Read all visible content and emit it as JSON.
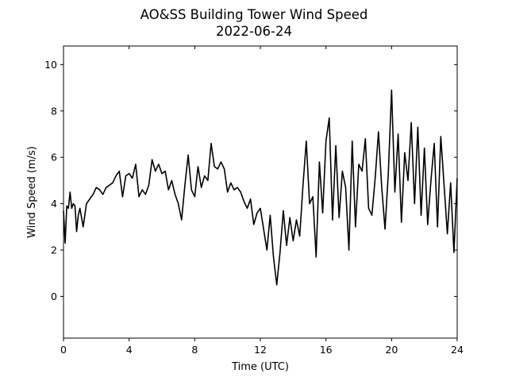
{
  "chart_data": {
    "type": "line",
    "title": "AO&SS Building Tower Wind Speed",
    "subtitle": "2022-06-24",
    "xlabel": "Time (UTC)",
    "ylabel": "Wind Speed (m/s)",
    "xlim": [
      0,
      24
    ],
    "ylim": [
      -1.8,
      10.8
    ],
    "xticks": [
      0,
      4,
      8,
      12,
      16,
      20,
      24
    ],
    "xtick_labels": [
      "0",
      "4",
      "8",
      "12",
      "16",
      "20",
      "24"
    ],
    "yticks": [
      0,
      2,
      4,
      6,
      8,
      10
    ],
    "ytick_labels": [
      "0",
      "2",
      "4",
      "6",
      "8",
      "10"
    ],
    "grid": false,
    "legend": "none",
    "series_color": "#000000",
    "series": [
      {
        "name": "",
        "x": [
          0.0,
          0.1,
          0.2,
          0.3,
          0.4,
          0.5,
          0.6,
          0.7,
          0.8,
          0.9,
          1.0,
          1.2,
          1.4,
          1.6,
          1.8,
          2.0,
          2.2,
          2.4,
          2.6,
          2.8,
          3.0,
          3.2,
          3.4,
          3.6,
          3.8,
          4.0,
          4.2,
          4.4,
          4.6,
          4.8,
          5.0,
          5.2,
          5.4,
          5.6,
          5.8,
          6.0,
          6.2,
          6.4,
          6.6,
          6.8,
          7.0,
          7.2,
          7.4,
          7.6,
          7.8,
          8.0,
          8.2,
          8.4,
          8.6,
          8.8,
          9.0,
          9.2,
          9.4,
          9.6,
          9.8,
          10.0,
          10.2,
          10.4,
          10.6,
          10.8,
          11.0,
          11.2,
          11.4,
          11.6,
          11.8,
          12.0,
          12.2,
          12.4,
          12.6,
          12.8,
          13.0,
          13.2,
          13.4,
          13.6,
          13.8,
          14.0,
          14.2,
          14.4,
          14.6,
          14.8,
          15.0,
          15.2,
          15.4,
          15.6,
          15.8,
          16.0,
          16.2,
          16.4,
          16.6,
          16.8,
          17.0,
          17.2,
          17.4,
          17.6,
          17.8,
          18.0,
          18.2,
          18.4,
          18.6,
          18.8,
          19.0,
          19.2,
          19.4,
          19.6,
          19.8,
          20.0,
          20.2,
          20.4,
          20.6,
          20.8,
          21.0,
          21.2,
          21.4,
          21.6,
          21.8,
          22.0,
          22.2,
          22.4,
          22.6,
          22.8,
          23.0,
          23.2,
          23.4,
          23.6,
          23.8,
          24.0
        ],
        "values": [
          3.7,
          2.3,
          3.9,
          3.8,
          4.5,
          3.8,
          4.0,
          3.9,
          2.8,
          3.5,
          3.8,
          3.0,
          4.0,
          4.2,
          4.4,
          4.7,
          4.6,
          4.4,
          4.7,
          4.8,
          4.9,
          5.2,
          5.4,
          4.3,
          5.2,
          5.3,
          5.1,
          5.7,
          4.3,
          4.6,
          4.4,
          4.8,
          5.9,
          5.4,
          5.7,
          5.3,
          5.4,
          4.6,
          5.0,
          4.4,
          4.0,
          3.3,
          4.8,
          6.1,
          4.6,
          4.3,
          5.6,
          4.7,
          5.2,
          5.0,
          6.6,
          5.6,
          5.5,
          5.8,
          5.5,
          4.5,
          4.9,
          4.6,
          4.7,
          4.5,
          4.1,
          3.8,
          4.2,
          3.1,
          3.6,
          3.8,
          2.9,
          2.0,
          3.5,
          1.7,
          0.5,
          1.9,
          3.7,
          2.2,
          3.4,
          2.4,
          3.3,
          2.6,
          4.8,
          6.7,
          4.0,
          4.3,
          1.7,
          5.8,
          3.6,
          6.7,
          7.7,
          3.3,
          6.5,
          3.4,
          5.4,
          4.7,
          2.0,
          6.7,
          3.0,
          5.7,
          5.4,
          6.8,
          3.8,
          3.5,
          5.1,
          7.1,
          4.7,
          2.9,
          5.3,
          8.9,
          4.5,
          7.0,
          3.2,
          6.2,
          5.0,
          7.5,
          4.0,
          7.3,
          3.5,
          6.4,
          3.1,
          5.0,
          6.6,
          3.0,
          6.9,
          4.8,
          2.7,
          4.9,
          1.9,
          5.1
        ]
      }
    ]
  }
}
